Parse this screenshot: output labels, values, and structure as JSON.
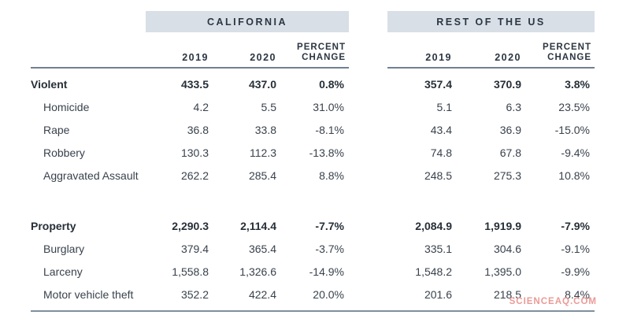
{
  "chart_data": {
    "type": "table",
    "groups": [
      {
        "title": "CALIFORNIA"
      },
      {
        "title": "REST OF THE US"
      }
    ],
    "columns": {
      "year1": "2019",
      "year2": "2020",
      "pct_line1": "PERCENT",
      "pct_line2": "CHANGE"
    },
    "rows": [
      {
        "label": "Violent",
        "bold": true,
        "spacer_before": false,
        "ca": [
          "433.5",
          "437.0",
          "0.8%"
        ],
        "us": [
          "357.4",
          "370.9",
          "3.8%"
        ]
      },
      {
        "label": "Homicide",
        "bold": false,
        "spacer_before": false,
        "ca": [
          "4.2",
          "5.5",
          "31.0%"
        ],
        "us": [
          "5.1",
          "6.3",
          "23.5%"
        ]
      },
      {
        "label": "Rape",
        "bold": false,
        "spacer_before": false,
        "ca": [
          "36.8",
          "33.8",
          "-8.1%"
        ],
        "us": [
          "43.4",
          "36.9",
          "-15.0%"
        ]
      },
      {
        "label": "Robbery",
        "bold": false,
        "spacer_before": false,
        "ca": [
          "130.3",
          "112.3",
          "-13.8%"
        ],
        "us": [
          "74.8",
          "67.8",
          "-9.4%"
        ]
      },
      {
        "label": "Aggravated Assault",
        "bold": false,
        "spacer_before": false,
        "ca": [
          "262.2",
          "285.4",
          "8.8%"
        ],
        "us": [
          "248.5",
          "275.3",
          "10.8%"
        ]
      },
      {
        "label": "Property",
        "bold": true,
        "spacer_before": true,
        "ca": [
          "2,290.3",
          "2,114.4",
          "-7.7%"
        ],
        "us": [
          "2,084.9",
          "1,919.9",
          "-7.9%"
        ]
      },
      {
        "label": "Burglary",
        "bold": false,
        "spacer_before": false,
        "ca": [
          "379.4",
          "365.4",
          "-3.7%"
        ],
        "us": [
          "335.1",
          "304.6",
          "-9.1%"
        ]
      },
      {
        "label": "Larceny",
        "bold": false,
        "spacer_before": false,
        "ca": [
          "1,558.8",
          "1,326.6",
          "-14.9%"
        ],
        "us": [
          "1,548.2",
          "1,395.0",
          "-9.9%"
        ]
      },
      {
        "label": "Motor vehicle theft",
        "bold": false,
        "spacer_before": false,
        "ca": [
          "352.2",
          "422.4",
          "20.0%"
        ],
        "us": [
          "201.6",
          "218.5",
          "8.4%"
        ]
      }
    ]
  },
  "watermark": {
    "text": "SCIENCEAQ.COM"
  },
  "colors": {
    "band_background": "#d9dfe6",
    "header_text": "#2b3642",
    "body_text": "#39424c",
    "rule": "#72808b",
    "watermark": "#eb9a96"
  }
}
